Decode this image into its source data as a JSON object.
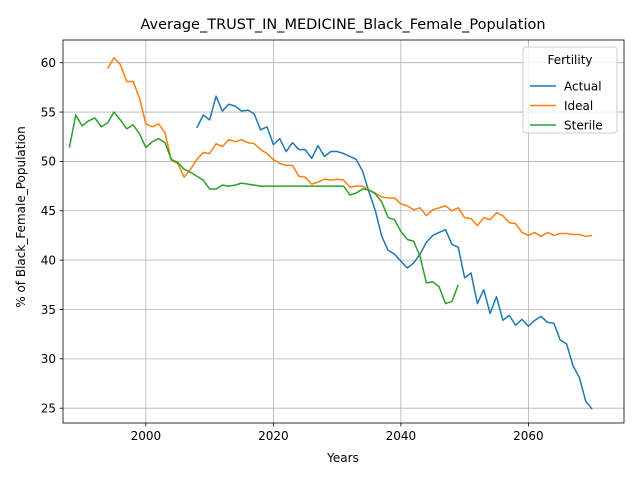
{
  "chart_data": {
    "type": "line",
    "title": "Average_TRUST_IN_MEDICINE_Black_Female_Population",
    "xlabel": "Years",
    "ylabel": "% of Black_Female_Population",
    "xlim": [
      1987,
      2075
    ],
    "ylim": [
      23.5,
      62.3
    ],
    "xticks": [
      2000,
      2020,
      2040,
      2060
    ],
    "yticks": [
      25,
      30,
      35,
      40,
      45,
      50,
      55,
      60
    ],
    "grid": true,
    "legend": {
      "title": "Fertility",
      "position": "top-right"
    },
    "series": [
      {
        "name": "Actual",
        "color": "#1f77b4",
        "x": [
          2008,
          2009,
          2010,
          2011,
          2012,
          2013,
          2014,
          2015,
          2016,
          2017,
          2018,
          2019,
          2020,
          2021,
          2022,
          2023,
          2024,
          2025,
          2026,
          2027,
          2028,
          2029,
          2030,
          2031,
          2032,
          2033,
          2034,
          2035,
          2036,
          2037,
          2038,
          2039,
          2040,
          2041,
          2042,
          2043,
          2044,
          2045,
          2046,
          2047,
          2048,
          2049,
          2050,
          2051,
          2052,
          2053,
          2054,
          2055,
          2056,
          2057,
          2058,
          2059,
          2060,
          2061,
          2062,
          2063,
          2064,
          2065,
          2066,
          2067,
          2068,
          2069,
          2070
        ],
        "y": [
          53.4,
          54.7,
          54.2,
          56.6,
          55.1,
          55.8,
          55.6,
          55.1,
          55.2,
          54.8,
          53.2,
          53.5,
          51.7,
          52.3,
          51.0,
          51.9,
          51.2,
          51.2,
          50.3,
          51.6,
          50.5,
          51.0,
          51.0,
          50.8,
          50.5,
          50.2,
          49.0,
          46.9,
          45.0,
          42.4,
          41.0,
          40.6,
          39.9,
          39.2,
          39.7,
          40.6,
          41.8,
          42.5,
          42.8,
          43.1,
          41.6,
          41.3,
          38.2,
          38.7,
          35.6,
          37.0,
          34.6,
          36.3,
          33.9,
          34.4,
          33.4,
          34.0,
          33.3,
          33.9,
          34.3,
          33.7,
          33.6,
          31.9,
          31.5,
          29.3,
          28.1,
          25.7,
          24.9
        ]
      },
      {
        "name": "Ideal",
        "color": "#ff7f0e",
        "x": [
          1994,
          1995,
          1996,
          1997,
          1998,
          1999,
          2000,
          2001,
          2002,
          2003,
          2004,
          2005,
          2006,
          2007,
          2008,
          2009,
          2010,
          2011,
          2012,
          2013,
          2014,
          2015,
          2016,
          2017,
          2018,
          2019,
          2020,
          2021,
          2022,
          2023,
          2024,
          2025,
          2026,
          2027,
          2028,
          2029,
          2030,
          2031,
          2032,
          2033,
          2034,
          2035,
          2036,
          2037,
          2038,
          2039,
          2040,
          2041,
          2042,
          2043,
          2044,
          2045,
          2046,
          2047,
          2048,
          2049,
          2050,
          2051,
          2052,
          2053,
          2054,
          2055,
          2056,
          2057,
          2058,
          2059,
          2060,
          2061,
          2062,
          2063,
          2064,
          2065,
          2066,
          2067,
          2068,
          2069,
          2070
        ],
        "y": [
          59.4,
          60.5,
          59.8,
          58.1,
          58.1,
          56.4,
          53.8,
          53.5,
          53.8,
          52.9,
          50.1,
          49.8,
          48.4,
          49.2,
          50.2,
          50.9,
          50.8,
          51.8,
          51.5,
          52.2,
          52.0,
          52.2,
          51.9,
          51.8,
          51.2,
          50.8,
          50.2,
          49.8,
          49.6,
          49.6,
          48.5,
          48.4,
          47.7,
          47.9,
          48.2,
          48.1,
          48.2,
          48.1,
          47.4,
          47.5,
          47.5,
          47.1,
          46.8,
          46.4,
          46.3,
          46.3,
          45.7,
          45.5,
          45.1,
          45.3,
          44.5,
          45.1,
          45.3,
          45.5,
          45.0,
          45.3,
          44.3,
          44.2,
          43.5,
          44.3,
          44.1,
          44.8,
          44.5,
          43.8,
          43.7,
          42.8,
          42.5,
          42.8,
          42.4,
          42.8,
          42.5,
          42.7,
          42.7,
          42.6,
          42.6,
          42.4,
          42.5
        ]
      },
      {
        "name": "Sterile",
        "color": "#2ca02c",
        "x": [
          1988,
          1989,
          1990,
          1991,
          1992,
          1993,
          1994,
          1995,
          1996,
          1997,
          1998,
          1999,
          2000,
          2001,
          2002,
          2003,
          2004,
          2005,
          2006,
          2007,
          2008,
          2009,
          2010,
          2011,
          2012,
          2013,
          2014,
          2015,
          2016,
          2017,
          2018,
          2019,
          2020,
          2021,
          2022,
          2023,
          2024,
          2025,
          2026,
          2027,
          2028,
          2029,
          2030,
          2031,
          2032,
          2033,
          2034,
          2035,
          2036,
          2037,
          2038,
          2039,
          2040,
          2041,
          2042,
          2043,
          2044,
          2045,
          2046,
          2047,
          2048,
          2049
        ],
        "y": [
          51.4,
          54.7,
          53.6,
          54.1,
          54.4,
          53.5,
          53.9,
          55.0,
          54.2,
          53.3,
          53.7,
          52.8,
          51.4,
          52.0,
          52.3,
          51.9,
          50.2,
          49.9,
          49.2,
          48.9,
          48.5,
          48.1,
          47.2,
          47.2,
          47.6,
          47.5,
          47.6,
          47.8,
          47.7,
          47.6,
          47.5,
          47.5,
          47.5,
          47.5,
          47.5,
          47.5,
          47.5,
          47.5,
          47.5,
          47.5,
          47.5,
          47.5,
          47.5,
          47.5,
          46.6,
          46.8,
          47.2,
          47.1,
          46.7,
          45.9,
          44.3,
          44.1,
          42.9,
          42.1,
          41.9,
          40.4,
          37.7,
          37.8,
          37.3,
          35.6,
          35.8,
          37.5
        ]
      }
    ]
  }
}
